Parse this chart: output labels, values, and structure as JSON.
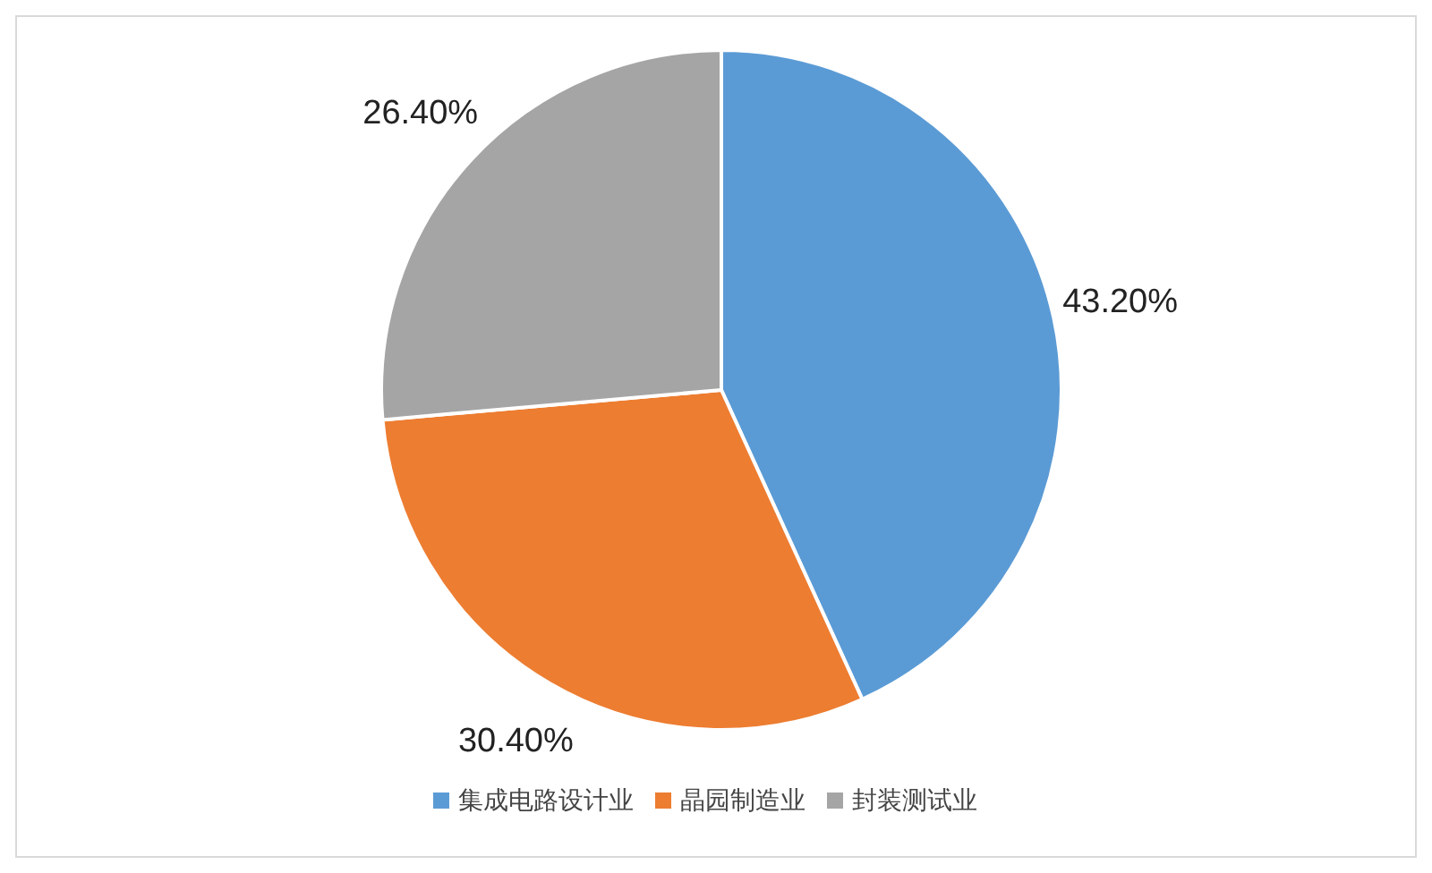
{
  "chart_data": {
    "type": "pie",
    "categories": [
      "集成电路设计业",
      "晶园制造业",
      "封装测试业"
    ],
    "values": [
      43.2,
      30.4,
      26.4
    ],
    "colors": [
      "#5b9bd5",
      "#ed7d31",
      "#a5a5a5"
    ],
    "value_labels": [
      "43.20%",
      "30.40%",
      "26.40%"
    ],
    "legend": "bottom"
  }
}
